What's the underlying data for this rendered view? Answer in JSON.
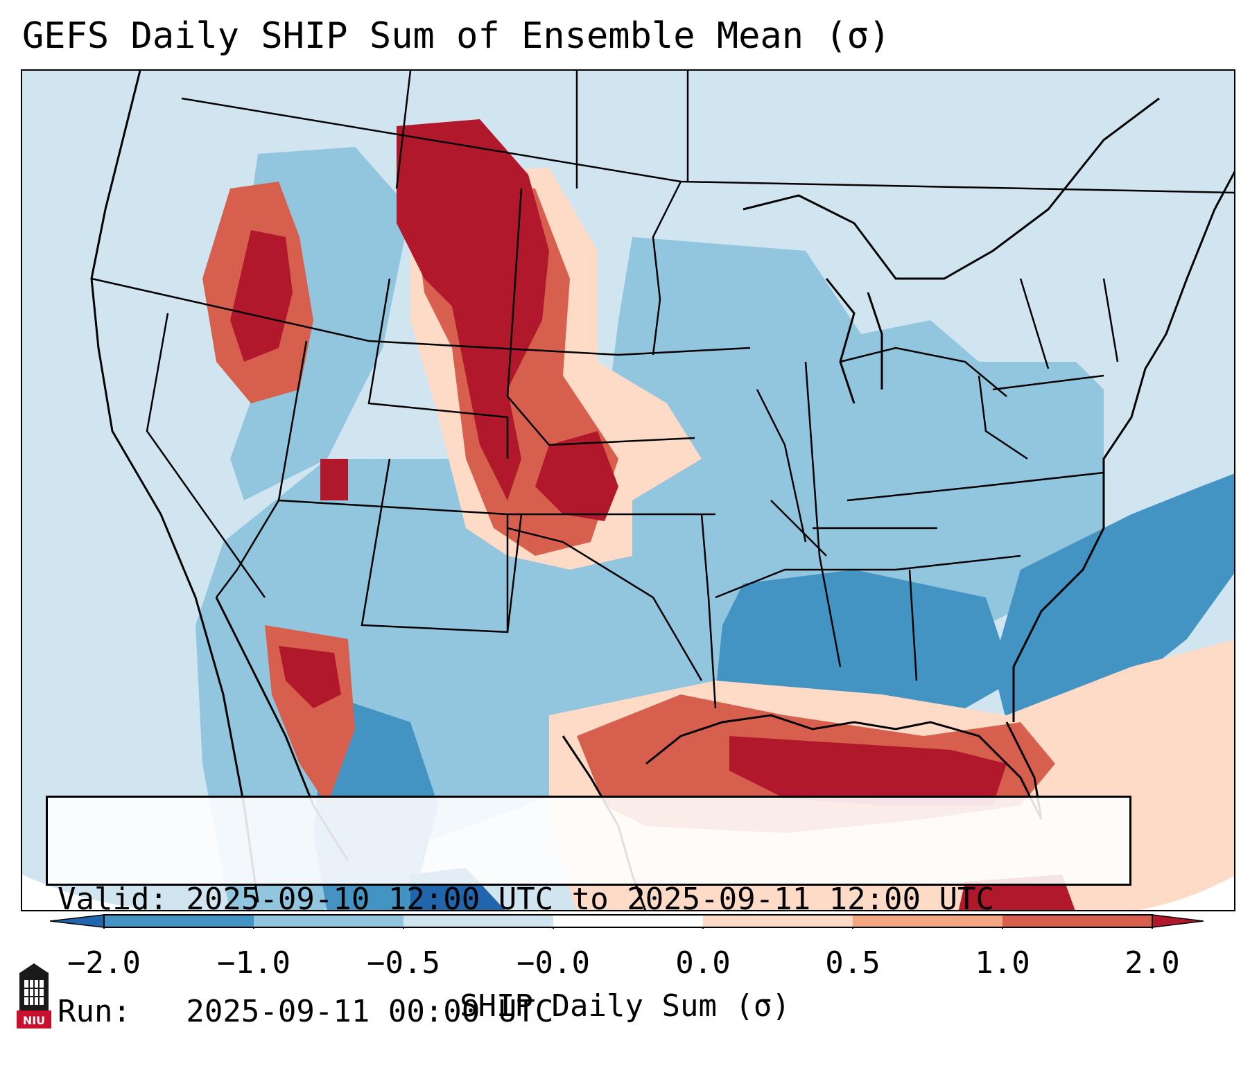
{
  "title": "GEFS Daily SHIP Sum of Ensemble Mean (σ)",
  "info_box": {
    "valid_line": "Valid: 2025-09-10 12:00 UTC to 2025-09-11 12:00 UTC",
    "run_line": "Run:   2025-09-11 00:00 UTC"
  },
  "colorbar": {
    "label": "SHIP Daily Sum (σ)",
    "ticks": [
      "−2.0",
      "−1.0",
      "−0.5",
      "−0.0",
      "0.0",
      "0.5",
      "1.0",
      "2.0"
    ],
    "bin_colors": [
      "#4393c3",
      "#92c5de",
      "#d1e5f0",
      "#fddbc7",
      "#f4a582",
      "#d6604d",
      "#b2182b"
    ],
    "under_color": "#2166ac",
    "over_color": "#b2182b"
  },
  "map": {
    "region": "Continental United States",
    "background_color": "#d1e5f0",
    "field_regions": [
      {
        "name": "northern-plains-maximum",
        "category": "strong-positive",
        "color": "#b2182b"
      },
      {
        "name": "central-plains-maximum",
        "category": "strong-positive",
        "color": "#b2182b"
      },
      {
        "name": "pacific-northwest-cells",
        "category": "positive",
        "color": "#d6604d"
      },
      {
        "name": "gulf-of-mexico-maximum",
        "category": "strong-positive",
        "color": "#b2182b"
      },
      {
        "name": "gulf-coast-band",
        "category": "positive",
        "color": "#d6604d"
      },
      {
        "name": "baja-california-maximum",
        "category": "positive",
        "color": "#b2182b"
      },
      {
        "name": "eastern-us-below-normal",
        "category": "negative",
        "color": "#92c5de"
      },
      {
        "name": "southeast-below-normal",
        "category": "strong-negative",
        "color": "#4393c3"
      },
      {
        "name": "atlantic-below-normal",
        "category": "strong-negative",
        "color": "#4393c3"
      },
      {
        "name": "caribbean-above-normal",
        "category": "weak-positive",
        "color": "#fddbc7"
      }
    ]
  },
  "logo": {
    "text": "NIU"
  }
}
